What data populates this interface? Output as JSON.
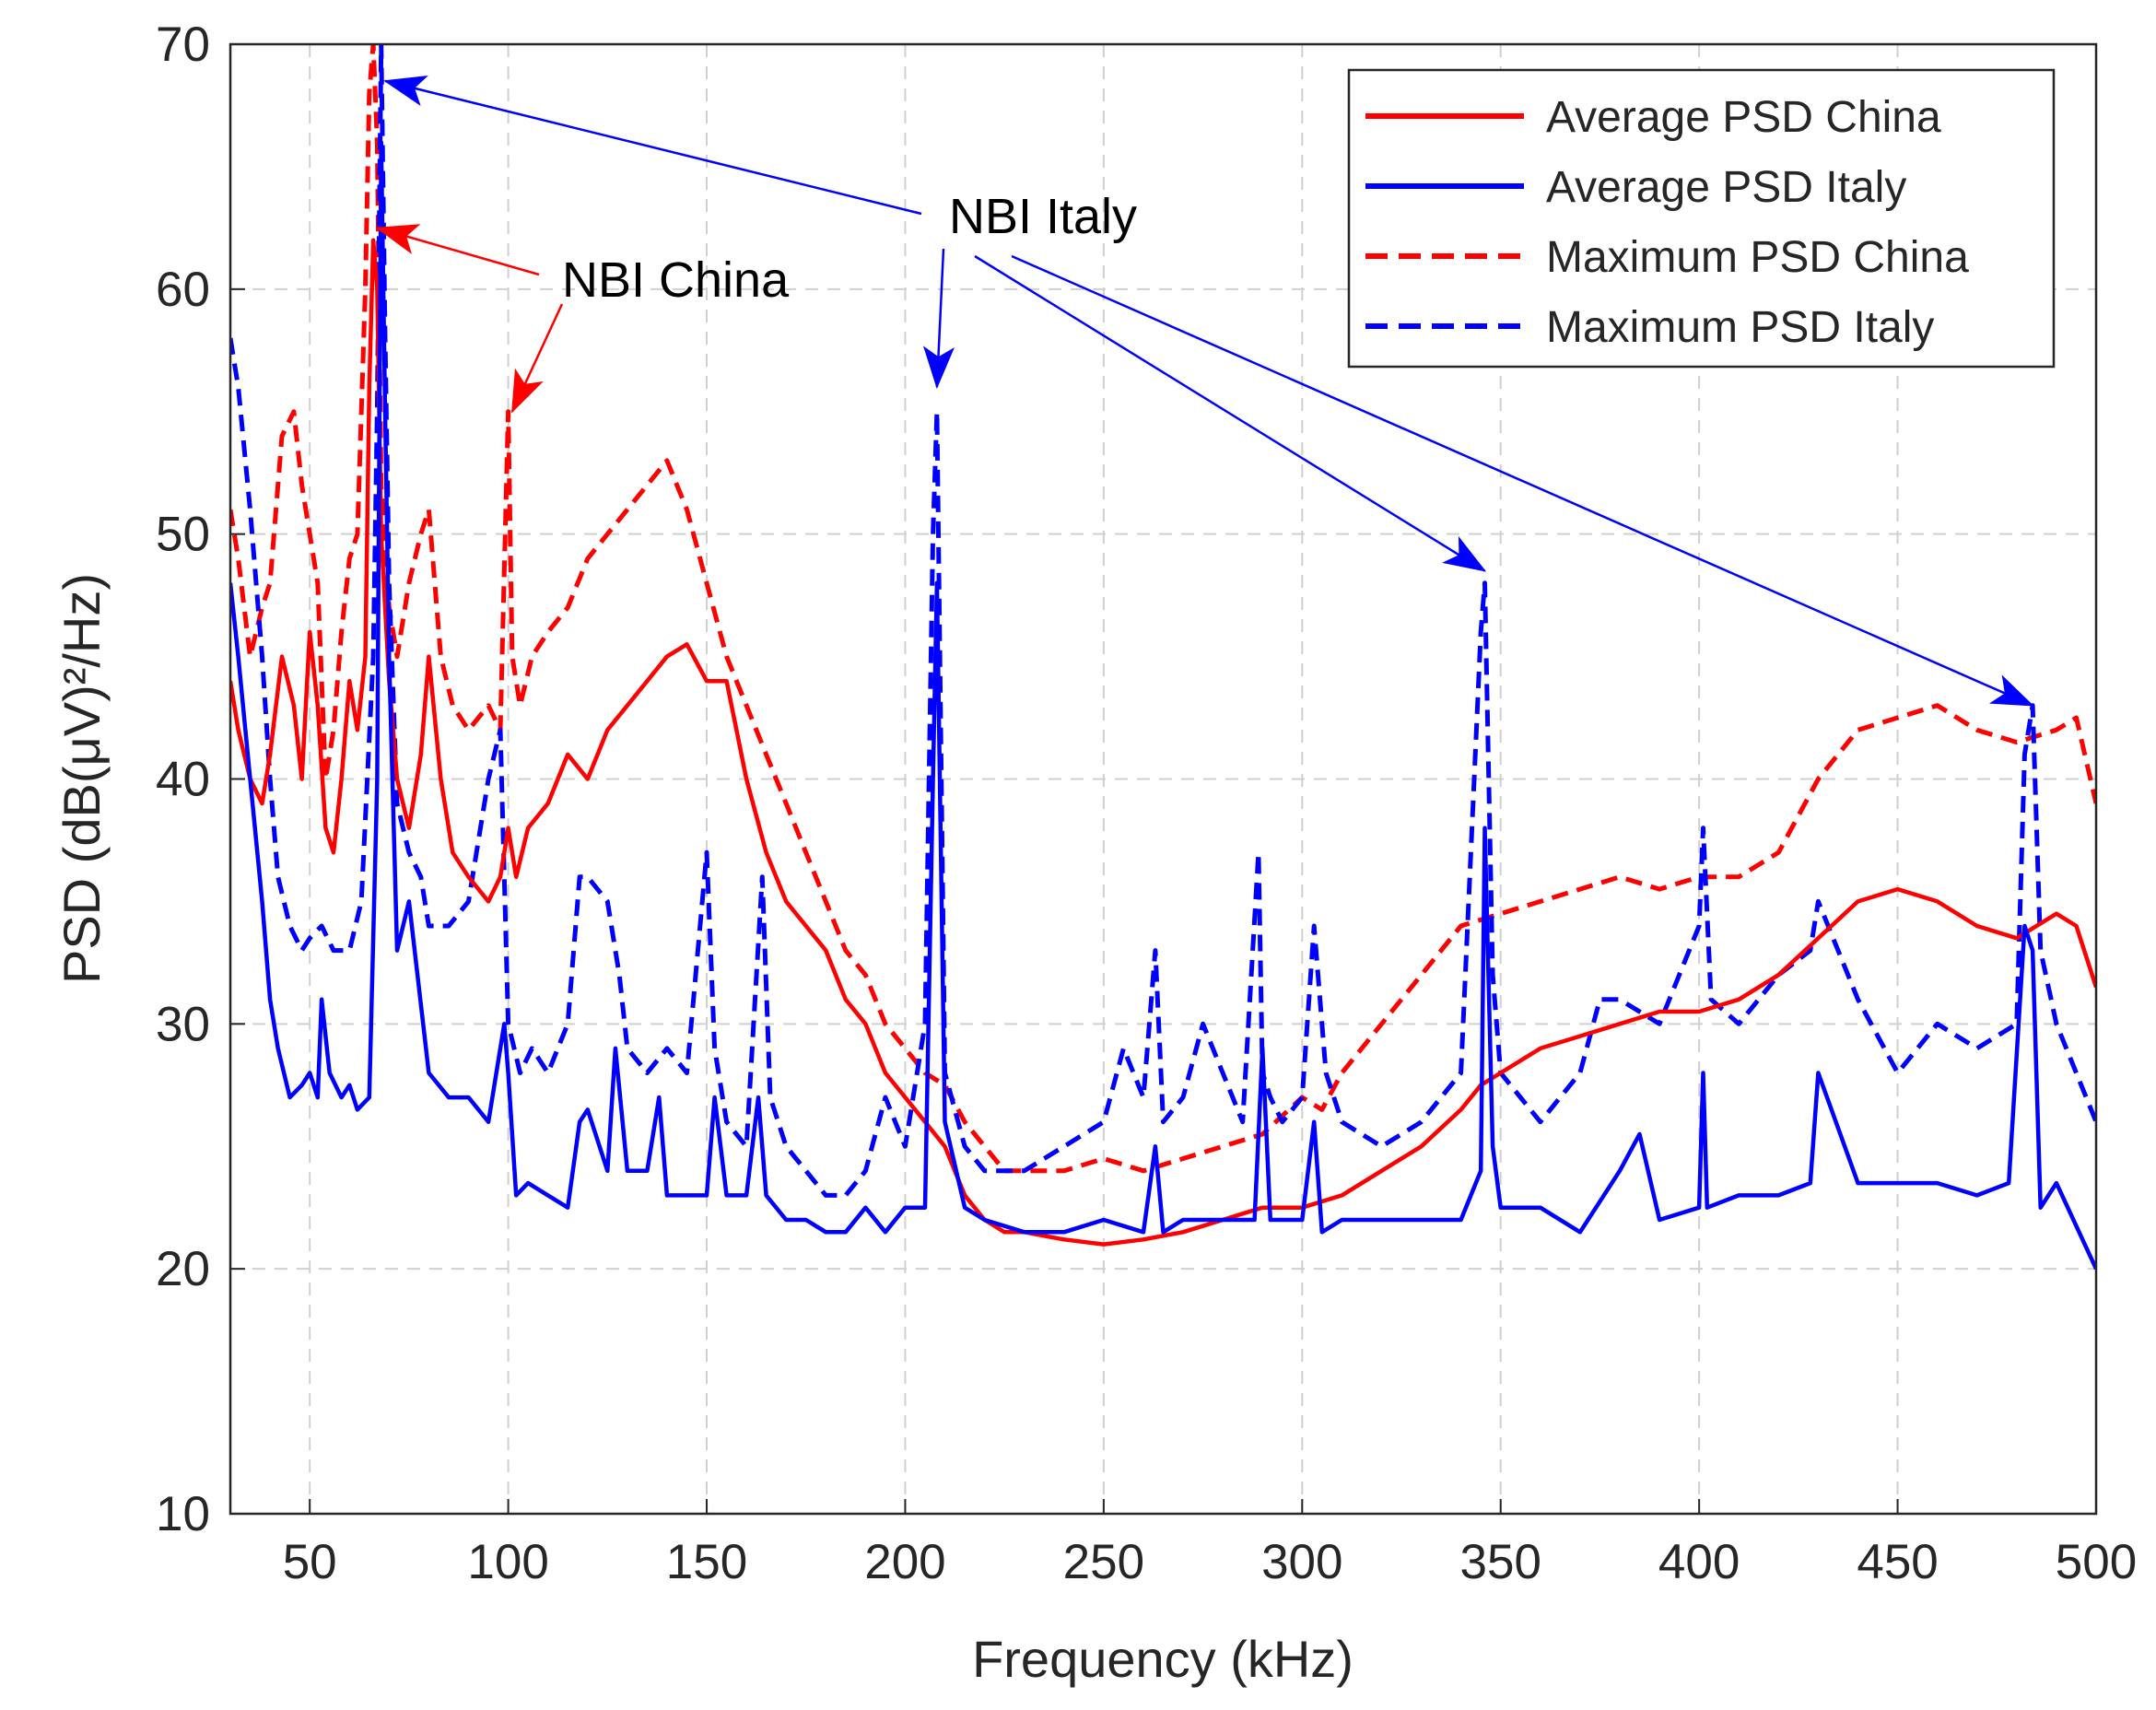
{
  "chart_data": {
    "type": "line",
    "xlabel": "Frequency (kHz)",
    "ylabel": "PSD (dB(μV)²/Hz)",
    "xlim": [
      30,
      500
    ],
    "ylim": [
      10,
      70
    ],
    "xticks": [
      50,
      100,
      150,
      200,
      250,
      300,
      350,
      400,
      450,
      500
    ],
    "yticks": [
      10,
      20,
      30,
      40,
      50,
      60,
      70
    ],
    "grid": true,
    "legend_position": "top-right",
    "colors": {
      "china": "#ff0000",
      "italy": "#0000ff"
    },
    "series": [
      {
        "name": "Average PSD China",
        "color": "#ff0000",
        "style": "solid",
        "x": [
          30,
          32,
          35,
          38,
          40,
          43,
          46,
          48,
          50,
          52,
          54,
          56,
          58,
          60,
          62,
          64,
          65,
          66,
          67,
          68,
          70,
          72,
          75,
          78,
          80,
          83,
          86,
          90,
          95,
          98,
          100,
          102,
          105,
          110,
          115,
          120,
          125,
          130,
          135,
          140,
          145,
          150,
          155,
          160,
          165,
          170,
          175,
          180,
          185,
          190,
          195,
          200,
          205,
          210,
          215,
          220,
          225,
          230,
          240,
          250,
          260,
          270,
          280,
          290,
          300,
          310,
          320,
          330,
          340,
          345,
          350,
          360,
          370,
          380,
          390,
          400,
          410,
          420,
          430,
          440,
          450,
          460,
          470,
          480,
          490,
          495,
          500
        ],
        "y": [
          44,
          42,
          40,
          39,
          41,
          45,
          43,
          40,
          46,
          43,
          38,
          37,
          40,
          44,
          42,
          45,
          56,
          62,
          60,
          50,
          44,
          40,
          38,
          41,
          45,
          40,
          37,
          36,
          35,
          36,
          38,
          36,
          38,
          39,
          41,
          40,
          42,
          43,
          44,
          45,
          45.5,
          44,
          44,
          40,
          37,
          35,
          34,
          33,
          31,
          30,
          28,
          27,
          26,
          25,
          23,
          22,
          21.5,
          21.5,
          21.2,
          21,
          21.2,
          21.5,
          22,
          22.5,
          22.5,
          23,
          24,
          25,
          26.5,
          27.5,
          28,
          29,
          29.5,
          30,
          30.5,
          30.5,
          31,
          32,
          33.5,
          35,
          35.5,
          35,
          34,
          33.5,
          34.5,
          34,
          31.5
        ]
      },
      {
        "name": "Average PSD Italy",
        "color": "#0000ff",
        "style": "solid",
        "x": [
          30,
          32,
          35,
          38,
          40,
          42,
          45,
          48,
          50,
          52,
          53,
          55,
          58,
          60,
          62,
          65,
          67,
          68,
          69,
          70,
          72,
          75,
          80,
          85,
          90,
          95,
          99,
          100,
          102,
          105,
          110,
          115,
          118,
          120,
          125,
          127,
          130,
          135,
          138,
          140,
          145,
          150,
          152,
          155,
          160,
          163,
          165,
          170,
          175,
          180,
          185,
          190,
          195,
          200,
          205,
          207,
          208,
          210,
          215,
          220,
          230,
          240,
          250,
          260,
          263,
          265,
          270,
          280,
          288,
          290,
          292,
          300,
          303,
          305,
          310,
          320,
          330,
          340,
          345,
          346,
          348,
          350,
          360,
          370,
          380,
          385,
          390,
          400,
          401,
          402,
          410,
          420,
          428,
          430,
          440,
          450,
          460,
          470,
          478,
          482,
          484,
          486,
          490,
          500
        ],
        "y": [
          48,
          45,
          40,
          35,
          31,
          29,
          27,
          27.5,
          28,
          27,
          31,
          28,
          27,
          27.5,
          26.5,
          27,
          40,
          66,
          55,
          45,
          33,
          35,
          28,
          27,
          27,
          26,
          30,
          28,
          23,
          23.5,
          23,
          22.5,
          26,
          26.5,
          24,
          29,
          24,
          24,
          27,
          23,
          23,
          23,
          27,
          23,
          23,
          27,
          23,
          22,
          22,
          21.5,
          21.5,
          22.5,
          21.5,
          22.5,
          22.5,
          40,
          48,
          26,
          22.5,
          22,
          21.5,
          21.5,
          22,
          21.5,
          25,
          21.5,
          22,
          22,
          22,
          29,
          22,
          22,
          26,
          21.5,
          22,
          22,
          22,
          22,
          24,
          38,
          25,
          22.5,
          22.5,
          21.5,
          24,
          25.5,
          22,
          22.5,
          28,
          22.5,
          23,
          23,
          23.5,
          28,
          23.5,
          23.5,
          23.5,
          23,
          23.5,
          34,
          33,
          22.5,
          23.5,
          20
        ]
      },
      {
        "name": "Maximum PSD China",
        "color": "#ff0000",
        "style": "dashed",
        "x": [
          30,
          32,
          35,
          38,
          40,
          43,
          46,
          48,
          50,
          52,
          54,
          56,
          58,
          60,
          62,
          64,
          65,
          66,
          67,
          68,
          70,
          72,
          75,
          78,
          80,
          83,
          86,
          90,
          95,
          98,
          100,
          101,
          103,
          106,
          110,
          115,
          120,
          125,
          130,
          135,
          140,
          145,
          150,
          155,
          160,
          165,
          170,
          175,
          180,
          185,
          190,
          195,
          200,
          205,
          210,
          215,
          220,
          225,
          230,
          240,
          250,
          260,
          270,
          280,
          290,
          300,
          305,
          310,
          320,
          330,
          340,
          350,
          360,
          370,
          380,
          390,
          400,
          410,
          420,
          430,
          440,
          450,
          460,
          470,
          480,
          490,
          495,
          500
        ],
        "y": [
          51,
          49,
          45,
          47,
          48,
          54,
          55,
          52,
          50,
          48,
          40,
          42,
          46,
          49,
          50,
          60,
          68,
          70,
          66,
          52,
          47,
          45,
          48,
          50,
          51,
          45,
          43,
          42,
          43,
          42,
          55,
          45,
          43,
          45,
          46,
          47,
          49,
          50,
          51,
          52,
          53,
          51,
          48,
          45,
          43,
          41,
          39,
          37,
          35,
          33,
          32,
          30,
          29,
          28,
          27.5,
          26,
          25,
          24,
          24,
          24,
          24.5,
          24,
          24.5,
          25,
          25.5,
          27,
          26.5,
          28,
          30,
          32,
          34,
          34.5,
          35,
          35.5,
          36,
          35.5,
          36,
          36,
          37,
          40,
          42,
          42.5,
          43,
          42,
          41.5,
          42,
          42.5,
          39
        ]
      },
      {
        "name": "Maximum PSD Italy",
        "color": "#0000ff",
        "style": "dashed",
        "x": [
          30,
          32,
          35,
          38,
          40,
          42,
          45,
          48,
          50,
          53,
          56,
          60,
          63,
          66,
          67,
          68,
          69,
          70,
          72,
          75,
          78,
          80,
          85,
          90,
          95,
          98,
          100,
          103,
          106,
          110,
          115,
          118,
          120,
          125,
          128,
          130,
          135,
          140,
          145,
          150,
          152,
          155,
          160,
          164,
          166,
          170,
          175,
          180,
          185,
          190,
          195,
          200,
          205,
          207,
          208,
          210,
          215,
          220,
          230,
          240,
          250,
          255,
          260,
          263,
          265,
          270,
          275,
          280,
          285,
          289,
          290,
          292,
          295,
          300,
          303,
          306,
          310,
          320,
          330,
          340,
          345,
          346,
          348,
          350,
          360,
          370,
          375,
          380,
          390,
          400,
          401,
          403,
          410,
          420,
          428,
          430,
          440,
          450,
          460,
          470,
          480,
          482,
          484,
          486,
          490,
          500
        ],
        "y": [
          58,
          56,
          51,
          45,
          40,
          36,
          34,
          33,
          33.5,
          34,
          33,
          33,
          35,
          45,
          55,
          70,
          58,
          48,
          39,
          37,
          36,
          34,
          34,
          35,
          40,
          42,
          30,
          28,
          29,
          28,
          30,
          36,
          36,
          35,
          32,
          29,
          28,
          29,
          28,
          37,
          29,
          26,
          25,
          36,
          27,
          25,
          24,
          23,
          23,
          24,
          27,
          25,
          30,
          50,
          55,
          28,
          25,
          24,
          24,
          25,
          26,
          29,
          27,
          33,
          26,
          27,
          30,
          28,
          26,
          37,
          28,
          27,
          26,
          27,
          34,
          28,
          26,
          25,
          26,
          28,
          46,
          48,
          32,
          28,
          26,
          28,
          31,
          31,
          30,
          34,
          38,
          31,
          30,
          32,
          33,
          35,
          31,
          28,
          30,
          29,
          30,
          41,
          43,
          33,
          30,
          26
        ]
      }
    ],
    "annotations": [
      {
        "text": "NBI China",
        "color": "#ff0000",
        "targets": [
          [
            67,
            62.5
          ],
          [
            101,
            55
          ]
        ]
      },
      {
        "text": "NBI Italy",
        "color": "#0000ff",
        "targets": [
          [
            69,
            68.5
          ],
          [
            208,
            56
          ],
          [
            346,
            48.5
          ],
          [
            484,
            43
          ]
        ]
      }
    ]
  }
}
